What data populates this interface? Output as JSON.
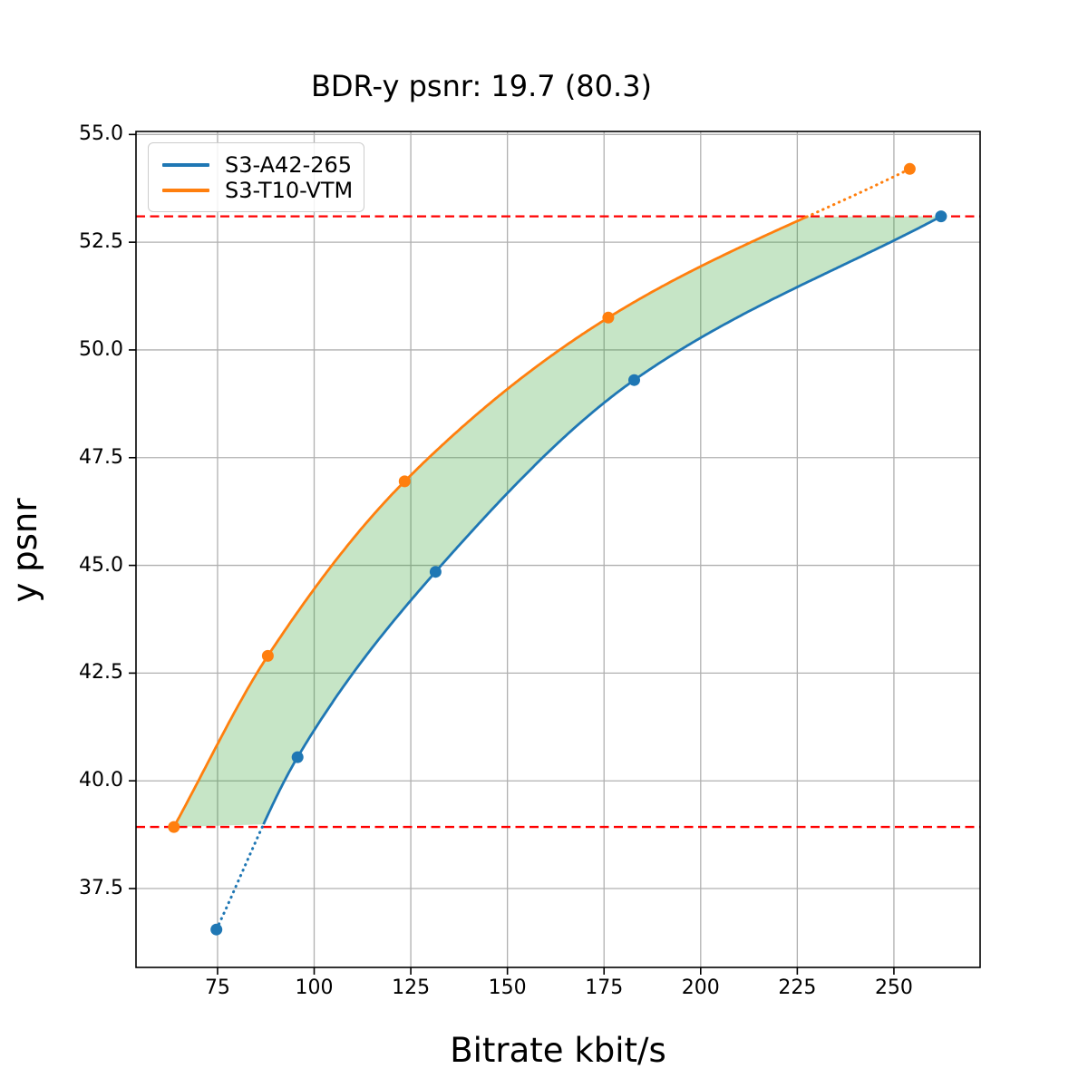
{
  "chart_data": {
    "type": "line",
    "title": "BDR-y psnr: 19.7 (80.3)",
    "xlabel": "Bitrate kbit/s",
    "ylabel": "y psnr",
    "xlim": [
      53.9,
      272.3
    ],
    "ylim": [
      35.67,
      55.07
    ],
    "grid": true,
    "legend_position": "upper left",
    "xticks": {
      "values": [
        75,
        100,
        125,
        150,
        175,
        200,
        225,
        250
      ],
      "labels": [
        "75",
        "100",
        "125",
        "150",
        "175",
        "200",
        "225",
        "250"
      ]
    },
    "yticks": {
      "values": [
        37.5,
        40.0,
        42.5,
        45.0,
        47.5,
        50.0,
        52.5,
        55.0
      ],
      "labels": [
        "37.5",
        "40.0",
        "42.5",
        "45.0",
        "47.5",
        "50.0",
        "52.5",
        "55.0"
      ]
    },
    "series": [
      {
        "name": "S3-A42-265",
        "color": "#1f77b4",
        "points": [
          [
            74.7,
            36.55
          ],
          [
            95.7,
            40.55
          ],
          [
            131.4,
            44.85
          ],
          [
            182.8,
            49.3
          ],
          [
            262.2,
            53.1
          ]
        ]
      },
      {
        "name": "S3-T10-VTM",
        "color": "#ff7f0e",
        "points": [
          [
            63.7,
            38.93
          ],
          [
            88.0,
            42.9
          ],
          [
            123.4,
            46.95
          ],
          [
            176.1,
            50.75
          ],
          [
            254.1,
            54.2
          ]
        ]
      }
    ],
    "hlines": {
      "values": [
        38.93,
        53.1
      ],
      "color": "#ff0000",
      "style": "dashed",
      "meaning": "common psnr overlap range used for BD-rate"
    },
    "overlap_fill": {
      "color": "#2ca02c",
      "opacity": 0.27
    },
    "colors": {
      "grid": "#b0b0b0",
      "spine": "#000000",
      "background": "#ffffff"
    }
  }
}
